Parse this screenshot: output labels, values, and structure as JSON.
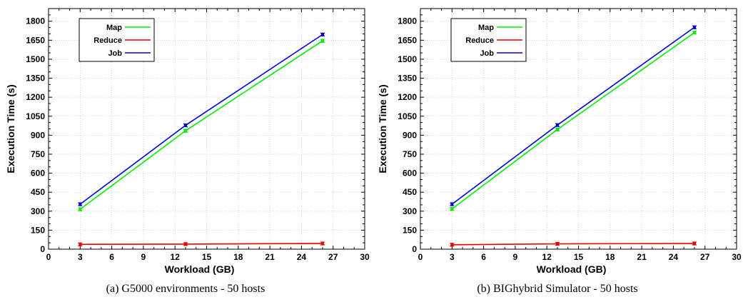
{
  "chart_data": [
    {
      "type": "line",
      "caption": "(a)  G5000 environments - 50 hosts",
      "xlabel": "Workload (GB)",
      "ylabel": "Execution Time (s)",
      "xlim": [
        0,
        30
      ],
      "ylim": [
        0,
        1900
      ],
      "xticks": [
        0,
        3,
        6,
        9,
        12,
        15,
        18,
        21,
        24,
        27,
        30
      ],
      "yticks": [
        0,
        150,
        300,
        450,
        600,
        750,
        900,
        1050,
        1200,
        1350,
        1500,
        1650,
        1800
      ],
      "grid": true,
      "legend_position": "top-left",
      "x": [
        3,
        13,
        26
      ],
      "series": [
        {
          "name": "Map",
          "color": "#00ee00",
          "values": [
            315,
            935,
            1645
          ]
        },
        {
          "name": "Reduce",
          "color": "#ee0000",
          "values": [
            38,
            40,
            45
          ]
        },
        {
          "name": "Job",
          "color": "#0000dd",
          "values": [
            355,
            978,
            1695
          ]
        }
      ]
    },
    {
      "type": "line",
      "caption": "(b)  BIGhybrid Simulator - 50 hosts",
      "xlabel": "Workload (GB)",
      "ylabel": "Execution Time (s)",
      "xlim": [
        0,
        30
      ],
      "ylim": [
        0,
        1900
      ],
      "xticks": [
        0,
        3,
        6,
        9,
        12,
        15,
        18,
        21,
        24,
        27,
        30
      ],
      "yticks": [
        0,
        150,
        300,
        450,
        600,
        750,
        900,
        1050,
        1200,
        1350,
        1500,
        1650,
        1800
      ],
      "grid": true,
      "legend_position": "top-left",
      "x": [
        3,
        13,
        26
      ],
      "series": [
        {
          "name": "Map",
          "color": "#00ee00",
          "values": [
            318,
            945,
            1710
          ]
        },
        {
          "name": "Reduce",
          "color": "#ee0000",
          "values": [
            35,
            42,
            45
          ]
        },
        {
          "name": "Job",
          "color": "#0000dd",
          "values": [
            355,
            980,
            1752
          ]
        }
      ]
    }
  ]
}
